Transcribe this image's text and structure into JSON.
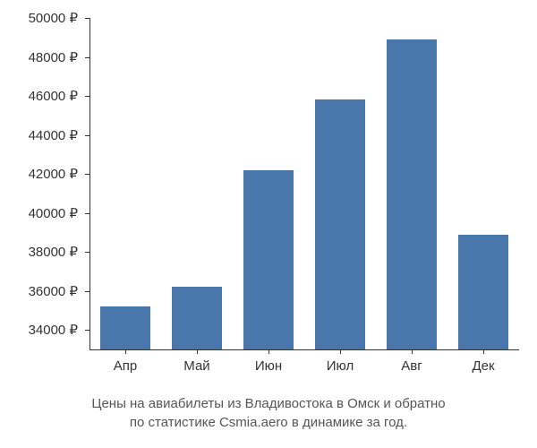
{
  "chart": {
    "type": "bar",
    "categories": [
      "Апр",
      "Май",
      "Июн",
      "Июл",
      "Авг",
      "Дек"
    ],
    "values": [
      35200,
      36200,
      42200,
      45800,
      48900,
      38900
    ],
    "bar_color": "#4a77ab",
    "ylim": [
      33000,
      50000
    ],
    "ytick_step": 2000,
    "ytick_labels": [
      "34000 ₽",
      "36000 ₽",
      "38000 ₽",
      "40000 ₽",
      "42000 ₽",
      "44000 ₽",
      "46000 ₽",
      "48000 ₽",
      "50000 ₽"
    ],
    "ytick_values": [
      34000,
      36000,
      38000,
      40000,
      42000,
      44000,
      46000,
      48000,
      50000
    ],
    "background_color": "#ffffff",
    "bar_width_ratio": 0.7,
    "axis_fontsize": 15,
    "caption_fontsize": 15,
    "axis_color": "#333333",
    "text_color": "#555555"
  },
  "caption": {
    "line1": "Цены на авиабилеты из Владивостока в Омск и обратно",
    "line2": "по статистике Csmia.aero в динамике за год."
  }
}
